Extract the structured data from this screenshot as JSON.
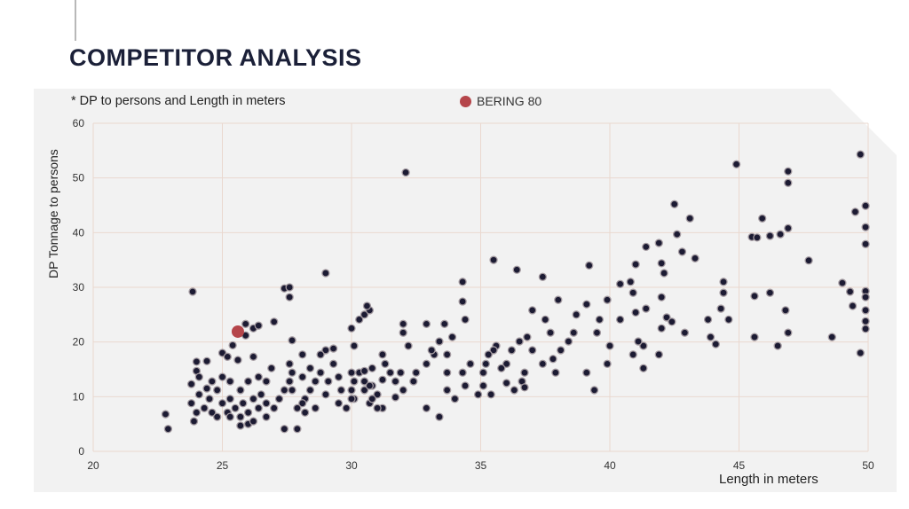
{
  "slide": {
    "title": "COMPETITOR ANALYSIS"
  },
  "chart_data": {
    "type": "scatter",
    "subtitle": "* DP to persons and Length in meters",
    "xlabel": "Length in meters",
    "ylabel": "DP Tonnage to persons",
    "xlim": [
      20,
      50
    ],
    "ylim": [
      0,
      60
    ],
    "xticks": [
      "20",
      "25",
      "30",
      "35",
      "40",
      "45",
      "50"
    ],
    "yticks": [
      "0",
      "10",
      "20",
      "30",
      "40",
      "50",
      "60"
    ],
    "grid": true,
    "legend_position": "top-center",
    "highlight": {
      "name": "BERING 80",
      "color": "#b5454a",
      "point": [
        25.6,
        21.9
      ]
    },
    "competitors_color": "#1c1b33",
    "competitors": [
      [
        32.1,
        51.0
      ],
      [
        23.85,
        29.2
      ],
      [
        29.0,
        32.6
      ],
      [
        27.4,
        29.8
      ],
      [
        27.6,
        28.2
      ],
      [
        27.6,
        30.0
      ],
      [
        34.3,
        31.0
      ],
      [
        35.5,
        35.0
      ],
      [
        36.4,
        33.2
      ],
      [
        37.4,
        31.9
      ],
      [
        39.2,
        34.0
      ],
      [
        44.9,
        52.5
      ],
      [
        49.7,
        54.3
      ],
      [
        46.9,
        51.2
      ],
      [
        46.9,
        49.1
      ],
      [
        45.9,
        42.6
      ],
      [
        45.5,
        39.2
      ],
      [
        45.7,
        39.1
      ],
      [
        46.2,
        39.4
      ],
      [
        46.6,
        39.7
      ],
      [
        46.9,
        40.8
      ],
      [
        42.5,
        45.2
      ],
      [
        43.1,
        42.6
      ],
      [
        42.6,
        39.7
      ],
      [
        42.8,
        36.5
      ],
      [
        43.3,
        35.3
      ],
      [
        47.7,
        34.9
      ],
      [
        49.9,
        44.9
      ],
      [
        49.9,
        41.0
      ],
      [
        49.9,
        37.9
      ],
      [
        49.5,
        43.8
      ],
      [
        49.0,
        30.8
      ],
      [
        49.3,
        29.2
      ],
      [
        49.4,
        26.6
      ],
      [
        49.9,
        29.3
      ],
      [
        49.9,
        28.2
      ],
      [
        49.9,
        25.8
      ],
      [
        49.9,
        23.8
      ],
      [
        49.9,
        22.4
      ],
      [
        49.7,
        18.0
      ],
      [
        48.6,
        20.9
      ],
      [
        45.6,
        20.9
      ],
      [
        45.6,
        28.4
      ],
      [
        46.2,
        29.0
      ],
      [
        46.8,
        25.8
      ],
      [
        46.9,
        21.7
      ],
      [
        46.5,
        19.3
      ],
      [
        41.0,
        34.2
      ],
      [
        40.8,
        31.0
      ],
      [
        40.4,
        30.6
      ],
      [
        41.4,
        37.4
      ],
      [
        41.9,
        38.1
      ],
      [
        42.0,
        34.4
      ],
      [
        42.1,
        32.6
      ],
      [
        42.0,
        28.2
      ],
      [
        42.2,
        24.5
      ],
      [
        42.0,
        22.5
      ],
      [
        41.9,
        17.7
      ],
      [
        41.4,
        26.1
      ],
      [
        41.3,
        19.3
      ],
      [
        40.9,
        29.0
      ],
      [
        41.0,
        25.4
      ],
      [
        41.1,
        20.1
      ],
      [
        40.9,
        17.7
      ],
      [
        40.4,
        24.1
      ],
      [
        40.0,
        19.3
      ],
      [
        39.9,
        16.0
      ],
      [
        42.4,
        23.7
      ],
      [
        42.9,
        21.7
      ],
      [
        43.8,
        24.1
      ],
      [
        44.3,
        26.1
      ],
      [
        44.4,
        31.0
      ],
      [
        44.4,
        29.0
      ],
      [
        44.6,
        24.1
      ],
      [
        44.1,
        19.6
      ],
      [
        43.9,
        20.9
      ],
      [
        41.3,
        15.2
      ],
      [
        39.1,
        26.9
      ],
      [
        38.7,
        25.0
      ],
      [
        38.6,
        21.7
      ],
      [
        38.4,
        20.1
      ],
      [
        38.1,
        18.5
      ],
      [
        37.8,
        16.9
      ],
      [
        37.9,
        14.4
      ],
      [
        37.4,
        16.0
      ],
      [
        37.0,
        18.5
      ],
      [
        36.8,
        20.9
      ],
      [
        36.5,
        20.1
      ],
      [
        36.2,
        18.5
      ],
      [
        36.0,
        16.0
      ],
      [
        36.7,
        14.4
      ],
      [
        36.6,
        12.8
      ],
      [
        36.7,
        11.7
      ],
      [
        35.6,
        19.3
      ],
      [
        35.5,
        18.5
      ],
      [
        35.3,
        17.7
      ],
      [
        35.2,
        16.0
      ],
      [
        35.1,
        14.4
      ],
      [
        35.1,
        12.0
      ],
      [
        35.4,
        10.4
      ],
      [
        34.9,
        10.4
      ],
      [
        35.8,
        15.2
      ],
      [
        36.0,
        12.5
      ],
      [
        36.3,
        11.2
      ],
      [
        38.0,
        27.7
      ],
      [
        37.5,
        24.1
      ],
      [
        37.0,
        25.8
      ],
      [
        37.7,
        21.7
      ],
      [
        39.4,
        11.2
      ],
      [
        39.1,
        14.4
      ],
      [
        39.5,
        21.7
      ],
      [
        39.6,
        24.1
      ],
      [
        39.9,
        27.7
      ],
      [
        34.3,
        27.4
      ],
      [
        34.4,
        24.1
      ],
      [
        33.9,
        20.9
      ],
      [
        33.6,
        23.3
      ],
      [
        33.4,
        20.1
      ],
      [
        33.2,
        17.7
      ],
      [
        32.9,
        16.0
      ],
      [
        32.5,
        14.4
      ],
      [
        32.4,
        12.8
      ],
      [
        32.0,
        11.2
      ],
      [
        31.7,
        12.8
      ],
      [
        31.5,
        14.4
      ],
      [
        31.3,
        16.0
      ],
      [
        31.2,
        17.7
      ],
      [
        30.8,
        15.2
      ],
      [
        30.5,
        12.8
      ],
      [
        33.7,
        14.4
      ],
      [
        33.7,
        11.2
      ],
      [
        34.0,
        9.6
      ],
      [
        33.4,
        6.3
      ],
      [
        32.9,
        7.9
      ],
      [
        32.2,
        19.3
      ],
      [
        32.0,
        21.7
      ],
      [
        32.0,
        23.3
      ],
      [
        32.9,
        23.3
      ],
      [
        33.1,
        18.5
      ],
      [
        33.7,
        17.7
      ],
      [
        34.3,
        14.4
      ],
      [
        34.4,
        12.0
      ],
      [
        34.6,
        16.0
      ],
      [
        30.8,
        12.0
      ],
      [
        31.0,
        10.4
      ],
      [
        30.7,
        8.8
      ],
      [
        31.2,
        7.9
      ],
      [
        30.1,
        9.6
      ],
      [
        30.1,
        12.8
      ],
      [
        30.3,
        14.4
      ],
      [
        30.5,
        25.0
      ],
      [
        30.3,
        24.1
      ],
      [
        30.0,
        22.5
      ],
      [
        30.1,
        19.3
      ],
      [
        30.0,
        14.4
      ],
      [
        30.0,
        11.2
      ],
      [
        30.0,
        9.6
      ],
      [
        29.5,
        13.6
      ],
      [
        29.6,
        11.2
      ],
      [
        29.8,
        7.9
      ],
      [
        31.9,
        14.4
      ],
      [
        31.7,
        9.9
      ],
      [
        29.0,
        18.5
      ],
      [
        29.3,
        18.8
      ],
      [
        28.8,
        14.4
      ],
      [
        28.6,
        12.8
      ],
      [
        28.4,
        11.2
      ],
      [
        28.2,
        9.6
      ],
      [
        28.1,
        8.8
      ],
      [
        27.9,
        7.9
      ],
      [
        27.7,
        11.2
      ],
      [
        27.7,
        14.4
      ],
      [
        28.1,
        13.6
      ],
      [
        27.6,
        12.8
      ],
      [
        27.4,
        11.2
      ],
      [
        27.2,
        9.6
      ],
      [
        27.0,
        7.9
      ],
      [
        26.7,
        8.8
      ],
      [
        26.5,
        10.4
      ],
      [
        26.4,
        7.9
      ],
      [
        26.2,
        9.6
      ],
      [
        26.0,
        7.1
      ],
      [
        25.8,
        8.8
      ],
      [
        25.7,
        11.2
      ],
      [
        25.5,
        7.9
      ],
      [
        25.3,
        9.6
      ],
      [
        25.2,
        7.1
      ],
      [
        25.0,
        8.8
      ],
      [
        24.8,
        11.2
      ],
      [
        24.6,
        7.1
      ],
      [
        24.5,
        9.6
      ],
      [
        24.3,
        7.9
      ],
      [
        24.1,
        10.4
      ],
      [
        24.0,
        7.1
      ],
      [
        23.8,
        8.8
      ],
      [
        23.9,
        5.5
      ],
      [
        22.8,
        6.8
      ],
      [
        22.9,
        4.1
      ],
      [
        23.8,
        12.3
      ],
      [
        24.0,
        14.7
      ],
      [
        24.0,
        16.4
      ],
      [
        24.4,
        16.5
      ],
      [
        25.0,
        18.0
      ],
      [
        25.2,
        17.3
      ],
      [
        25.4,
        19.4
      ],
      [
        25.6,
        16.7
      ],
      [
        26.2,
        17.3
      ],
      [
        25.9,
        21.2
      ],
      [
        26.2,
        22.5
      ],
      [
        26.4,
        23.0
      ],
      [
        25.9,
        23.3
      ],
      [
        27.7,
        20.3
      ],
      [
        27.0,
        23.7
      ],
      [
        25.7,
        4.7
      ],
      [
        26.0,
        5.0
      ],
      [
        27.4,
        4.1
      ],
      [
        27.9,
        4.1
      ],
      [
        27.6,
        16.0
      ],
      [
        28.1,
        17.7
      ],
      [
        28.4,
        15.2
      ],
      [
        28.8,
        17.7
      ],
      [
        29.3,
        16.0
      ],
      [
        29.1,
        12.8
      ],
      [
        29.5,
        8.8
      ],
      [
        29.0,
        10.4
      ],
      [
        28.6,
        7.9
      ],
      [
        28.2,
        7.1
      ],
      [
        26.7,
        12.8
      ],
      [
        26.9,
        15.2
      ],
      [
        26.4,
        13.6
      ],
      [
        26.0,
        12.8
      ],
      [
        25.3,
        12.8
      ],
      [
        25.0,
        13.6
      ],
      [
        24.6,
        12.8
      ],
      [
        24.4,
        11.5
      ],
      [
        24.1,
        13.6
      ],
      [
        25.3,
        6.3
      ],
      [
        24.8,
        6.3
      ],
      [
        26.7,
        6.3
      ],
      [
        26.2,
        5.5
      ],
      [
        25.7,
        6.3
      ],
      [
        30.5,
        11.2
      ],
      [
        30.7,
        12.0
      ],
      [
        30.8,
        9.6
      ],
      [
        30.5,
        14.7
      ],
      [
        31.2,
        13.1
      ],
      [
        31.0,
        7.9
      ],
      [
        30.7,
        25.8
      ],
      [
        30.6,
        26.6
      ]
    ]
  }
}
